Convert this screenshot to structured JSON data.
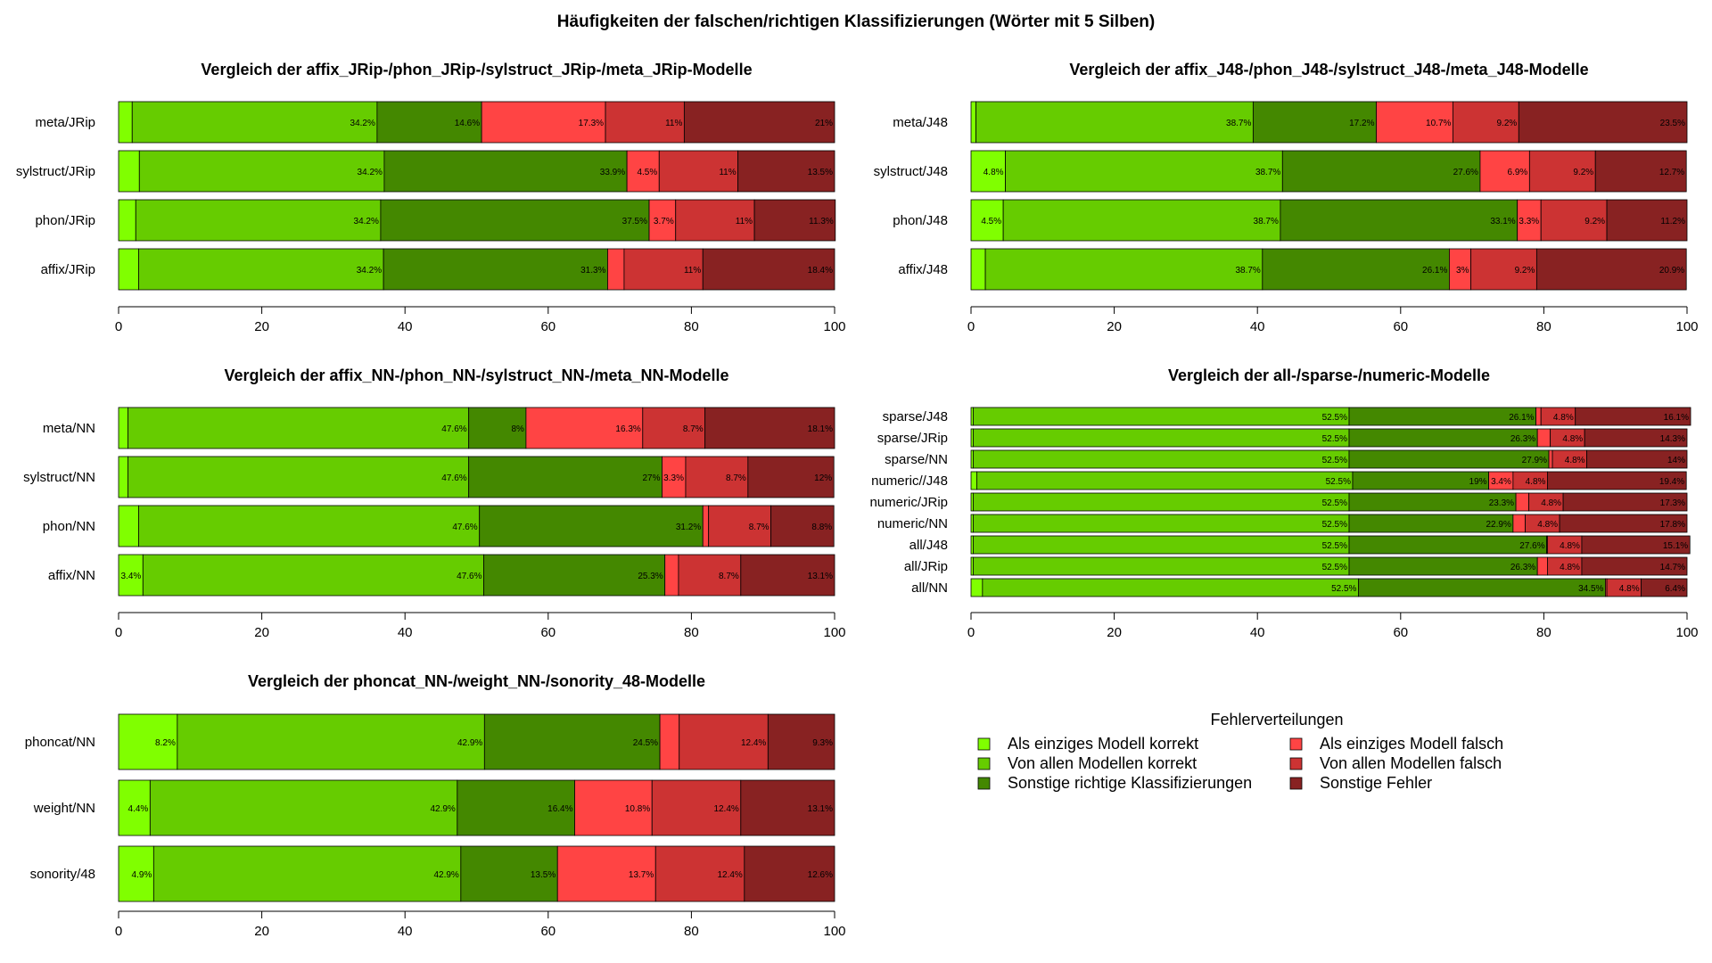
{
  "title": "Häufigkeiten der falschen/richtigen Klassifizierungen (Wörter mit 5 Silben)",
  "colors": [
    "#80ff00",
    "#66cc00",
    "#448800",
    "#ff4444",
    "#cc3333",
    "#882222"
  ],
  "legend": {
    "title": "Fehlerverteilungen",
    "items": [
      "Als einziges Modell korrekt",
      "Von allen Modellen korrekt",
      "Sonstige richtige Klassifizierungen",
      "Als einziges Modell falsch",
      "Von allen Modellen falsch",
      "Sonstige Fehler"
    ]
  },
  "chart_data": [
    {
      "type": "bar",
      "orientation": "horizontal-stacked",
      "title": "Vergleich der affix_JRip-/phon_JRip-/sylstruct_JRip-/meta_JRip-Modelle",
      "categories": [
        "meta/JRip",
        "sylstruct/JRip",
        "phon/JRip",
        "affix/JRip"
      ],
      "xlim": [
        0,
        100
      ],
      "xticks": [
        0,
        20,
        40,
        60,
        80,
        100
      ],
      "values": [
        [
          1.9,
          34.2,
          14.6,
          17.3,
          11,
          21
        ],
        [
          2.9,
          34.2,
          33.9,
          4.5,
          11,
          13.5
        ],
        [
          2.4,
          34.2,
          37.5,
          3.7,
          11,
          11.3
        ],
        [
          2.8,
          34.2,
          31.3,
          2.3,
          11,
          18.4
        ]
      ],
      "labels": [
        [
          "",
          "34.2%",
          "14.6%",
          "17.3%",
          "11%",
          "21%"
        ],
        [
          "",
          "34.2%",
          "33.9%",
          "4.5%",
          "11%",
          "13.5%"
        ],
        [
          "",
          "34.2%",
          "37.5%",
          "3.7%",
          "11%",
          "11.3%"
        ],
        [
          "",
          "34.2%",
          "31.3%",
          "",
          "11%",
          "18.4%"
        ]
      ]
    },
    {
      "type": "bar",
      "orientation": "horizontal-stacked",
      "title": "Vergleich der affix_J48-/phon_J48-/sylstruct_J48-/meta_J48-Modelle",
      "categories": [
        "meta/J48",
        "sylstruct/J48",
        "phon/J48",
        "affix/J48"
      ],
      "xlim": [
        0,
        100
      ],
      "xticks": [
        0,
        20,
        40,
        60,
        80,
        100
      ],
      "values": [
        [
          0.7,
          38.7,
          17.2,
          10.7,
          9.2,
          23.5
        ],
        [
          4.8,
          38.7,
          27.6,
          6.9,
          9.2,
          12.7
        ],
        [
          4.5,
          38.7,
          33.1,
          3.3,
          9.2,
          11.2
        ],
        [
          2.0,
          38.7,
          26.1,
          3,
          9.2,
          20.9
        ]
      ],
      "labels": [
        [
          "",
          "38.7%",
          "17.2%",
          "10.7%",
          "9.2%",
          "23.5%"
        ],
        [
          "4.8%",
          "38.7%",
          "27.6%",
          "6.9%",
          "9.2%",
          "12.7%"
        ],
        [
          "4.5%",
          "38.7%",
          "33.1%",
          "3.3%",
          "9.2%",
          "11.2%"
        ],
        [
          "",
          "38.7%",
          "26.1%",
          "3%",
          "9.2%",
          "20.9%"
        ]
      ]
    },
    {
      "type": "bar",
      "orientation": "horizontal-stacked",
      "title": "Vergleich der affix_NN-/phon_NN-/sylstruct_NN-/meta_NN-Modelle",
      "categories": [
        "meta/NN",
        "sylstruct/NN",
        "phon/NN",
        "affix/NN"
      ],
      "xlim": [
        0,
        100
      ],
      "xticks": [
        0,
        20,
        40,
        60,
        80,
        100
      ],
      "values": [
        [
          1.3,
          47.6,
          8,
          16.3,
          8.7,
          18.1
        ],
        [
          1.3,
          47.6,
          27,
          3.3,
          8.7,
          12
        ],
        [
          2.8,
          47.6,
          31.2,
          0.8,
          8.7,
          8.8
        ],
        [
          3.4,
          47.6,
          25.3,
          1.9,
          8.7,
          13.1
        ]
      ],
      "labels": [
        [
          "",
          "47.6%",
          "8%",
          "16.3%",
          "8.7%",
          "18.1%"
        ],
        [
          "",
          "47.6%",
          "27%",
          "3.3%",
          "8.7%",
          "12%"
        ],
        [
          "",
          "47.6%",
          "31.2%",
          "",
          "8.7%",
          "8.8%"
        ],
        [
          "3.4%",
          "47.6%",
          "25.3%",
          "",
          "8.7%",
          "13.1%"
        ]
      ]
    },
    {
      "type": "bar",
      "orientation": "horizontal-stacked",
      "title": "Vergleich der all-/sparse-/numeric-Modelle",
      "categories": [
        "sparse/J48",
        "sparse/JRip",
        "sparse/NN",
        "numeric//J48",
        "numeric/JRip",
        "numeric/NN",
        "all/J48",
        "all/JRip",
        "all/NN"
      ],
      "xlim": [
        0,
        100
      ],
      "xticks": [
        0,
        20,
        40,
        60,
        80,
        100
      ],
      "values": [
        [
          0.3,
          52.5,
          26.1,
          0.7,
          4.8,
          16.1
        ],
        [
          0.3,
          52.5,
          26.3,
          1.8,
          4.8,
          14.3
        ],
        [
          0.3,
          52.5,
          27.9,
          0.5,
          4.8,
          14
        ],
        [
          0.8,
          52.5,
          19,
          3.4,
          4.8,
          19.4
        ],
        [
          0.3,
          52.5,
          23.3,
          1.8,
          4.8,
          17.3
        ],
        [
          0.3,
          52.5,
          22.9,
          1.7,
          4.8,
          17.8
        ],
        [
          0.3,
          52.5,
          27.6,
          0.1,
          4.8,
          15.1
        ],
        [
          0.3,
          52.5,
          26.3,
          1.4,
          4.8,
          14.7
        ],
        [
          1.6,
          52.5,
          34.5,
          0.2,
          4.8,
          6.4
        ]
      ],
      "labels": [
        [
          "",
          "52.5%",
          "26.1%",
          "",
          "4.8%",
          "16.1%"
        ],
        [
          "",
          "52.5%",
          "26.3%",
          "",
          "4.8%",
          "14.3%"
        ],
        [
          "",
          "52.5%",
          "27.9%",
          "",
          "4.8%",
          "14%"
        ],
        [
          "",
          "52.5%",
          "19%",
          "3.4%",
          "4.8%",
          "19.4%"
        ],
        [
          "",
          "52.5%",
          "23.3%",
          "",
          "4.8%",
          "17.3%"
        ],
        [
          "",
          "52.5%",
          "22.9%",
          "",
          "4.8%",
          "17.8%"
        ],
        [
          "",
          "52.5%",
          "27.6%",
          "",
          "4.8%",
          "15.1%"
        ],
        [
          "",
          "52.5%",
          "26.3%",
          "",
          "4.8%",
          "14.7%"
        ],
        [
          "",
          "52.5%",
          "34.5%",
          "",
          "4.8%",
          "6.4%"
        ]
      ]
    },
    {
      "type": "bar",
      "orientation": "horizontal-stacked",
      "title": "Vergleich der phoncat_NN-/weight_NN-/sonority_48-Modelle",
      "categories": [
        "phoncat/NN",
        "weight/NN",
        "sonority/48"
      ],
      "xlim": [
        0,
        100
      ],
      "xticks": [
        0,
        20,
        40,
        60,
        80,
        100
      ],
      "values": [
        [
          8.2,
          42.9,
          24.5,
          2.7,
          12.4,
          9.3
        ],
        [
          4.4,
          42.9,
          16.4,
          10.8,
          12.4,
          13.1
        ],
        [
          4.9,
          42.9,
          13.5,
          13.7,
          12.4,
          12.6
        ]
      ],
      "labels": [
        [
          "8.2%",
          "42.9%",
          "24.5%",
          "",
          "12.4%",
          "9.3%"
        ],
        [
          "4.4%",
          "42.9%",
          "16.4%",
          "10.8%",
          "12.4%",
          "13.1%"
        ],
        [
          "4.9%",
          "42.9%",
          "13.5%",
          "13.7%",
          "12.4%",
          "12.6%"
        ]
      ]
    }
  ]
}
